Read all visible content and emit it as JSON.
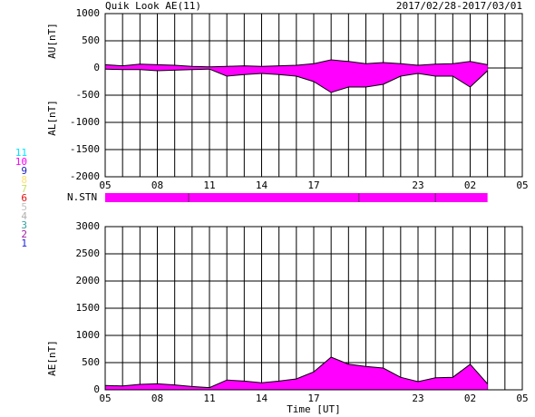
{
  "chart_data": [
    {
      "type": "area",
      "title": "Quik Look AE(11)",
      "subtitle": "2017/02/28-2017/03/01",
      "xlim": [
        0,
        24
      ],
      "xticks": [
        {
          "value": 0,
          "label": "05"
        },
        {
          "value": 3,
          "label": "08"
        },
        {
          "value": 6,
          "label": "11"
        },
        {
          "value": 9,
          "label": "14"
        },
        {
          "value": 12,
          "label": "17"
        },
        {
          "value": 18,
          "label": "23"
        },
        {
          "value": 21,
          "label": "02"
        },
        {
          "value": 24,
          "label": "05"
        }
      ],
      "xgrid": [
        0,
        1,
        2,
        3,
        4,
        5,
        6,
        7,
        8,
        9,
        10,
        11,
        12,
        13,
        14,
        15,
        16,
        17,
        18,
        19,
        20,
        21,
        22,
        23,
        24
      ],
      "ylim": [
        -2000,
        1000
      ],
      "yticks": [
        -2000,
        -1500,
        -1000,
        -500,
        0,
        500,
        1000
      ],
      "x": [
        0,
        1,
        2,
        3,
        4,
        5,
        6,
        7,
        8,
        9,
        10,
        11,
        12,
        13,
        14,
        15,
        16,
        17,
        18,
        19,
        20,
        21,
        22
      ],
      "series": [
        {
          "label": "AU[nT]",
          "color": "#ff00ff",
          "values": [
            60,
            40,
            70,
            60,
            50,
            30,
            20,
            30,
            40,
            30,
            40,
            50,
            80,
            150,
            120,
            80,
            100,
            80,
            50,
            70,
            80,
            120,
            60
          ]
        },
        {
          "label": "AL[nT]",
          "color": "#ff00ff",
          "values": [
            -20,
            -30,
            -30,
            -50,
            -40,
            -30,
            -20,
            -150,
            -120,
            -100,
            -120,
            -150,
            -250,
            -450,
            -350,
            -350,
            -300,
            -150,
            -100,
            -150,
            -150,
            -350,
            -50
          ]
        }
      ]
    },
    {
      "type": "area",
      "xlabel": "Time [UT]",
      "xlim": [
        0,
        24
      ],
      "xticks": [
        {
          "value": 0,
          "label": "05"
        },
        {
          "value": 3,
          "label": "08"
        },
        {
          "value": 6,
          "label": "11"
        },
        {
          "value": 9,
          "label": "14"
        },
        {
          "value": 12,
          "label": "17"
        },
        {
          "value": 18,
          "label": "23"
        },
        {
          "value": 21,
          "label": "02"
        },
        {
          "value": 24,
          "label": "05"
        }
      ],
      "xgrid": [
        0,
        1,
        2,
        3,
        4,
        5,
        6,
        7,
        8,
        9,
        10,
        11,
        12,
        13,
        14,
        15,
        16,
        17,
        18,
        19,
        20,
        21,
        22,
        23,
        24
      ],
      "ylim": [
        0,
        3000
      ],
      "yticks": [
        0,
        500,
        1000,
        1500,
        2000,
        2500,
        3000
      ],
      "x": [
        0,
        1,
        2,
        3,
        4,
        5,
        6,
        7,
        8,
        9,
        10,
        11,
        12,
        13,
        14,
        15,
        16,
        17,
        18,
        19,
        20,
        21,
        22
      ],
      "series": [
        {
          "label": "AE[nT]",
          "color": "#ff00ff",
          "values": [
            80,
            70,
            100,
            110,
            90,
            60,
            40,
            180,
            160,
            130,
            160,
            200,
            330,
            600,
            470,
            430,
            400,
            230,
            150,
            220,
            230,
            470,
            110
          ]
        }
      ]
    }
  ],
  "stations": {
    "label": "N.STN",
    "edges": [
      0,
      4.8,
      14.6,
      19,
      22
    ],
    "values": [
      10,
      10,
      10,
      10
    ],
    "color": "#ff00ff"
  },
  "legend": [
    {
      "label": "11",
      "color": "#00e5ff"
    },
    {
      "label": "10",
      "color": "#ff00ff"
    },
    {
      "label": "9",
      "color": "#2020c0"
    },
    {
      "label": "8",
      "color": "#ffe070"
    },
    {
      "label": "7",
      "color": "#c8e060"
    },
    {
      "label": "6",
      "color": "#e01010"
    },
    {
      "label": "5",
      "color": "#c0c0c0"
    },
    {
      "label": "4",
      "color": "#b0b0b0"
    },
    {
      "label": "3",
      "color": "#30a0a0"
    },
    {
      "label": "2",
      "color": "#a020a0"
    },
    {
      "label": "1",
      "color": "#2020e0"
    }
  ]
}
